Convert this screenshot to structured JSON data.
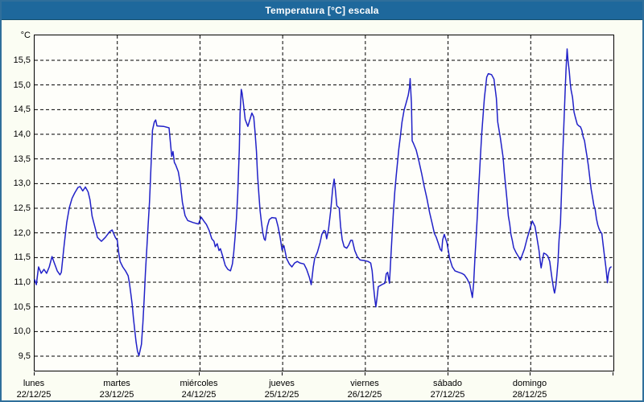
{
  "window": {
    "title": "Temperatura [°C] escala"
  },
  "colors": {
    "title_bar": "#1e689c",
    "title_text": "#ffffff",
    "window_background": "#fbfdf3",
    "plot_background": "#fefefa",
    "window_border": "#2f6f9b",
    "grid": "#000000",
    "line": "#2121c8"
  },
  "chart_data": {
    "type": "line",
    "title": "Temperatura [°C] escala",
    "legend": "none",
    "grid": {
      "style": "dashed",
      "horizontal_every": 0.5,
      "vertical_every_days": 1
    },
    "y_axis": {
      "unit_label": "°C",
      "min": 9.5,
      "max": 15.5,
      "step": 0.5,
      "decimal_separator": ",",
      "tick_labels": [
        "15,5",
        "15,0",
        "14,5",
        "14,0",
        "13,5",
        "13,0",
        "12,5",
        "12,0",
        "11,5",
        "11,0",
        "10,5",
        "10,0",
        "9,5"
      ]
    },
    "x_axis": {
      "span_days": 7,
      "days": [
        {
          "name": "lunes",
          "date": "22/12/25"
        },
        {
          "name": "martes",
          "date": "23/12/25"
        },
        {
          "name": "miércoles",
          "date": "24/12/25"
        },
        {
          "name": "jueves",
          "date": "25/12/25"
        },
        {
          "name": "viernes",
          "date": "26/12/25"
        },
        {
          "name": "sábado",
          "date": "27/12/25"
        },
        {
          "name": "domingo",
          "date": "28/12/25"
        }
      ]
    },
    "series": [
      {
        "name": "Temperatura",
        "unit": "°C",
        "points": [
          [
            0.0,
            11.05
          ],
          [
            0.02,
            10.95
          ],
          [
            0.048,
            11.31
          ],
          [
            0.08,
            11.18
          ],
          [
            0.113,
            11.26
          ],
          [
            0.145,
            11.18
          ],
          [
            0.177,
            11.31
          ],
          [
            0.21,
            11.52
          ],
          [
            0.242,
            11.37
          ],
          [
            0.274,
            11.23
          ],
          [
            0.307,
            11.15
          ],
          [
            0.323,
            11.2
          ],
          [
            0.356,
            11.74
          ],
          [
            0.388,
            12.21
          ],
          [
            0.42,
            12.51
          ],
          [
            0.453,
            12.7
          ],
          [
            0.485,
            12.81
          ],
          [
            0.524,
            12.92
          ],
          [
            0.55,
            12.94
          ],
          [
            0.582,
            12.85
          ],
          [
            0.614,
            12.93
          ],
          [
            0.647,
            12.83
          ],
          [
            0.67,
            12.67
          ],
          [
            0.695,
            12.34
          ],
          [
            0.737,
            12.07
          ],
          [
            0.759,
            11.91
          ],
          [
            0.808,
            11.83
          ],
          [
            0.856,
            11.91
          ],
          [
            0.905,
            12.02
          ],
          [
            0.938,
            12.06
          ],
          [
            0.976,
            11.91
          ],
          [
            1.0,
            11.85
          ],
          [
            1.018,
            11.58
          ],
          [
            1.034,
            11.42
          ],
          [
            1.066,
            11.31
          ],
          [
            1.099,
            11.23
          ],
          [
            1.131,
            11.13
          ],
          [
            1.147,
            10.98
          ],
          [
            1.163,
            10.77
          ],
          [
            1.18,
            10.55
          ],
          [
            1.195,
            10.28
          ],
          [
            1.212,
            10.01
          ],
          [
            1.228,
            9.78
          ],
          [
            1.244,
            9.6
          ],
          [
            1.262,
            9.51
          ],
          [
            1.292,
            9.74
          ],
          [
            1.309,
            10.17
          ],
          [
            1.325,
            10.66
          ],
          [
            1.341,
            11.21
          ],
          [
            1.357,
            11.69
          ],
          [
            1.374,
            12.18
          ],
          [
            1.389,
            12.62
          ],
          [
            1.399,
            13.0
          ],
          [
            1.425,
            14.08
          ],
          [
            1.448,
            14.25
          ],
          [
            1.464,
            14.29
          ],
          [
            1.48,
            14.17
          ],
          [
            1.56,
            14.16
          ],
          [
            1.626,
            14.13
          ],
          [
            1.658,
            13.55
          ],
          [
            1.674,
            13.65
          ],
          [
            1.69,
            13.43
          ],
          [
            1.706,
            13.38
          ],
          [
            1.738,
            13.24
          ],
          [
            1.762,
            13.0
          ],
          [
            1.787,
            12.62
          ],
          [
            1.82,
            12.35
          ],
          [
            1.852,
            12.25
          ],
          [
            1.917,
            12.21
          ],
          [
            1.981,
            12.18
          ],
          [
            2.014,
            12.32
          ],
          [
            2.046,
            12.24
          ],
          [
            2.078,
            12.17
          ],
          [
            2.111,
            12.05
          ],
          [
            2.143,
            11.88
          ],
          [
            2.169,
            11.83
          ],
          [
            2.185,
            11.72
          ],
          [
            2.208,
            11.78
          ],
          [
            2.23,
            11.64
          ],
          [
            2.247,
            11.68
          ],
          [
            2.272,
            11.54
          ],
          [
            2.305,
            11.34
          ],
          [
            2.337,
            11.26
          ],
          [
            2.369,
            11.23
          ],
          [
            2.392,
            11.37
          ],
          [
            2.408,
            11.59
          ],
          [
            2.424,
            11.91
          ],
          [
            2.441,
            12.29
          ],
          [
            2.456,
            12.78
          ],
          [
            2.476,
            13.7
          ],
          [
            2.485,
            14.41
          ],
          [
            2.499,
            14.91
          ],
          [
            2.509,
            14.84
          ],
          [
            2.524,
            14.63
          ],
          [
            2.547,
            14.3
          ],
          [
            2.579,
            14.16
          ],
          [
            2.628,
            14.43
          ],
          [
            2.65,
            14.35
          ],
          [
            2.666,
            14.05
          ],
          [
            2.683,
            13.65
          ],
          [
            2.695,
            13.21
          ],
          [
            2.712,
            12.78
          ],
          [
            2.727,
            12.45
          ],
          [
            2.744,
            12.21
          ],
          [
            2.76,
            12.0
          ],
          [
            2.776,
            11.88
          ],
          [
            2.789,
            11.85
          ],
          [
            2.815,
            12.13
          ],
          [
            2.838,
            12.27
          ],
          [
            2.87,
            12.31
          ],
          [
            2.918,
            12.3
          ],
          [
            2.944,
            12.13
          ],
          [
            2.97,
            11.9
          ],
          [
            2.993,
            11.65
          ],
          [
            3.0,
            11.69
          ],
          [
            3.015,
            11.74
          ],
          [
            3.047,
            11.48
          ],
          [
            3.08,
            11.37
          ],
          [
            3.112,
            11.31
          ],
          [
            3.145,
            11.39
          ],
          [
            3.177,
            11.42
          ],
          [
            3.209,
            11.39
          ],
          [
            3.258,
            11.37
          ],
          [
            3.29,
            11.26
          ],
          [
            3.323,
            11.1
          ],
          [
            3.345,
            10.95
          ],
          [
            3.371,
            11.31
          ],
          [
            3.387,
            11.48
          ],
          [
            3.42,
            11.61
          ],
          [
            3.452,
            11.8
          ],
          [
            3.474,
            11.97
          ],
          [
            3.5,
            12.05
          ],
          [
            3.517,
            12.03
          ],
          [
            3.532,
            11.88
          ],
          [
            3.555,
            12.07
          ],
          [
            3.581,
            12.45
          ],
          [
            3.604,
            12.89
          ],
          [
            3.623,
            13.09
          ],
          [
            3.636,
            12.89
          ],
          [
            3.655,
            12.55
          ],
          [
            3.684,
            12.5
          ],
          [
            3.701,
            12.13
          ],
          [
            3.72,
            11.86
          ],
          [
            3.743,
            11.72
          ],
          [
            3.775,
            11.69
          ],
          [
            3.798,
            11.75
          ],
          [
            3.823,
            11.85
          ],
          [
            3.843,
            11.85
          ],
          [
            3.872,
            11.64
          ],
          [
            3.905,
            11.51
          ],
          [
            3.937,
            11.45
          ],
          [
            3.985,
            11.44
          ],
          [
            4.033,
            11.42
          ],
          [
            4.065,
            11.39
          ],
          [
            4.082,
            11.23
          ],
          [
            4.098,
            10.93
          ],
          [
            4.114,
            10.66
          ],
          [
            4.127,
            10.5
          ],
          [
            4.14,
            10.66
          ],
          [
            4.156,
            10.91
          ],
          [
            4.179,
            10.93
          ],
          [
            4.211,
            10.96
          ],
          [
            4.237,
            10.98
          ],
          [
            4.253,
            11.17
          ],
          [
            4.269,
            11.2
          ],
          [
            4.292,
            10.98
          ],
          [
            4.324,
            11.97
          ],
          [
            4.34,
            12.45
          ],
          [
            4.356,
            12.83
          ],
          [
            4.373,
            13.16
          ],
          [
            4.389,
            13.43
          ],
          [
            4.404,
            13.7
          ],
          [
            4.421,
            13.92
          ],
          [
            4.443,
            14.25
          ],
          [
            4.469,
            14.49
          ],
          [
            4.492,
            14.63
          ],
          [
            4.518,
            14.79
          ],
          [
            4.534,
            14.95
          ],
          [
            4.542,
            15.13
          ],
          [
            4.557,
            14.63
          ],
          [
            4.566,
            13.87
          ],
          [
            4.583,
            13.81
          ],
          [
            4.615,
            13.68
          ],
          [
            4.647,
            13.46
          ],
          [
            4.68,
            13.21
          ],
          [
            4.712,
            12.94
          ],
          [
            4.744,
            12.7
          ],
          [
            4.777,
            12.41
          ],
          [
            4.809,
            12.18
          ],
          [
            4.835,
            11.99
          ],
          [
            4.858,
            11.91
          ],
          [
            4.884,
            11.78
          ],
          [
            4.906,
            11.67
          ],
          [
            4.923,
            11.63
          ],
          [
            4.935,
            11.86
          ],
          [
            4.955,
            11.97
          ],
          [
            4.987,
            11.8
          ],
          [
            5.02,
            11.48
          ],
          [
            5.052,
            11.31
          ],
          [
            5.084,
            11.23
          ],
          [
            5.13,
            11.2
          ],
          [
            5.165,
            11.18
          ],
          [
            5.197,
            11.15
          ],
          [
            5.23,
            11.07
          ],
          [
            5.262,
            10.96
          ],
          [
            5.294,
            10.69
          ],
          [
            5.31,
            10.98
          ],
          [
            5.326,
            11.53
          ],
          [
            5.342,
            11.97
          ],
          [
            5.358,
            12.46
          ],
          [
            5.374,
            13.0
          ],
          [
            5.39,
            13.49
          ],
          [
            5.407,
            14.01
          ],
          [
            5.439,
            14.73
          ],
          [
            5.468,
            15.16
          ],
          [
            5.487,
            15.23
          ],
          [
            5.526,
            15.21
          ],
          [
            5.555,
            15.12
          ],
          [
            5.584,
            14.73
          ],
          [
            5.601,
            14.25
          ],
          [
            5.633,
            13.92
          ],
          [
            5.665,
            13.54
          ],
          [
            5.681,
            13.22
          ],
          [
            5.697,
            12.94
          ],
          [
            5.713,
            12.67
          ],
          [
            5.729,
            12.34
          ],
          [
            5.746,
            12.18
          ],
          [
            5.761,
            11.97
          ],
          [
            5.778,
            11.84
          ],
          [
            5.794,
            11.7
          ],
          [
            5.826,
            11.59
          ],
          [
            5.858,
            11.5
          ],
          [
            5.875,
            11.45
          ],
          [
            5.923,
            11.67
          ],
          [
            5.955,
            11.88
          ],
          [
            5.988,
            12.07
          ],
          [
            6.02,
            12.24
          ],
          [
            6.052,
            12.13
          ],
          [
            6.068,
            11.97
          ],
          [
            6.085,
            11.8
          ],
          [
            6.1,
            11.64
          ],
          [
            6.117,
            11.4
          ],
          [
            6.126,
            11.29
          ],
          [
            6.143,
            11.46
          ],
          [
            6.158,
            11.59
          ],
          [
            6.182,
            11.57
          ],
          [
            6.207,
            11.53
          ],
          [
            6.23,
            11.42
          ],
          [
            6.246,
            11.21
          ],
          [
            6.262,
            11.02
          ],
          [
            6.279,
            10.85
          ],
          [
            6.288,
            10.78
          ],
          [
            6.304,
            10.93
          ],
          [
            6.317,
            11.15
          ],
          [
            6.33,
            11.42
          ],
          [
            6.343,
            11.86
          ],
          [
            6.359,
            12.19
          ],
          [
            6.374,
            12.9
          ],
          [
            6.388,
            13.6
          ],
          [
            6.403,
            14.3
          ],
          [
            6.417,
            14.9
          ],
          [
            6.427,
            15.3
          ],
          [
            6.44,
            15.73
          ],
          [
            6.451,
            15.5
          ],
          [
            6.466,
            15.27
          ],
          [
            6.478,
            15.03
          ],
          [
            6.488,
            14.9
          ],
          [
            6.505,
            14.75
          ],
          [
            6.524,
            14.45
          ],
          [
            6.539,
            14.35
          ],
          [
            6.563,
            14.2
          ],
          [
            6.582,
            14.17
          ],
          [
            6.602,
            14.15
          ],
          [
            6.618,
            14.08
          ],
          [
            6.634,
            13.95
          ],
          [
            6.65,
            13.87
          ],
          [
            6.666,
            13.7
          ],
          [
            6.682,
            13.54
          ],
          [
            6.698,
            13.35
          ],
          [
            6.715,
            13.11
          ],
          [
            6.73,
            12.89
          ],
          [
            6.747,
            12.73
          ],
          [
            6.763,
            12.56
          ],
          [
            6.779,
            12.48
          ],
          [
            6.795,
            12.29
          ],
          [
            6.811,
            12.16
          ],
          [
            6.827,
            12.08
          ],
          [
            6.844,
            12.02
          ],
          [
            6.86,
            11.99
          ],
          [
            6.876,
            11.75
          ],
          [
            6.892,
            11.53
          ],
          [
            6.908,
            11.31
          ],
          [
            6.928,
            10.99
          ],
          [
            6.94,
            11.18
          ],
          [
            6.957,
            11.29
          ],
          [
            6.972,
            11.31
          ]
        ]
      }
    ]
  }
}
